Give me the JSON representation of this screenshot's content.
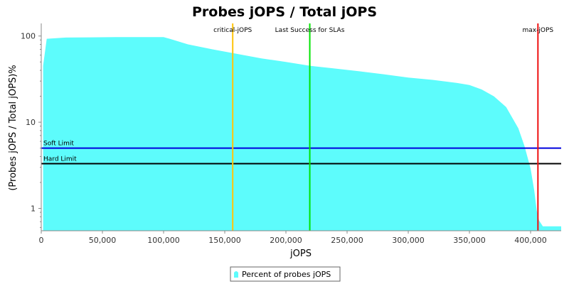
{
  "chart_data": {
    "type": "area",
    "title": "Probes jOPS / Total jOPS",
    "xlabel": "jOPS",
    "ylabel": "(Probes jOPS / Total jOPS)%",
    "y_scale": "log",
    "xlim": [
      0,
      425000
    ],
    "ylim": [
      0.55,
      140
    ],
    "x_ticks": [
      {
        "value": 0,
        "label": "0"
      },
      {
        "value": 50000,
        "label": "50,000"
      },
      {
        "value": 100000,
        "label": "100,000"
      },
      {
        "value": 150000,
        "label": "150,000"
      },
      {
        "value": 200000,
        "label": "200,000"
      },
      {
        "value": 250000,
        "label": "250,000"
      },
      {
        "value": 300000,
        "label": "300,000"
      },
      {
        "value": 350000,
        "label": "350,000"
      },
      {
        "value": 400000,
        "label": "400,000"
      }
    ],
    "y_ticks": [
      {
        "value": 1,
        "label": "1"
      },
      {
        "value": 10,
        "label": "10"
      },
      {
        "value": 100,
        "label": "100"
      }
    ],
    "grid": false,
    "legend_position": "bottom-center",
    "series": [
      {
        "name": "Percent of probes jOPS",
        "color": "#5dfcfc",
        "points": [
          [
            1500,
            45
          ],
          [
            4500,
            93
          ],
          [
            10000,
            94
          ],
          [
            20000,
            96
          ],
          [
            40000,
            96.5
          ],
          [
            60000,
            97
          ],
          [
            80000,
            97
          ],
          [
            100000,
            97
          ],
          [
            105000,
            93
          ],
          [
            120000,
            80
          ],
          [
            140000,
            70
          ],
          [
            160000,
            62
          ],
          [
            180000,
            55
          ],
          [
            200000,
            50
          ],
          [
            220000,
            45
          ],
          [
            240000,
            42
          ],
          [
            260000,
            39
          ],
          [
            280000,
            36
          ],
          [
            300000,
            33
          ],
          [
            320000,
            31
          ],
          [
            340000,
            28.5
          ],
          [
            350000,
            27
          ],
          [
            360000,
            24
          ],
          [
            370000,
            20
          ],
          [
            380000,
            15
          ],
          [
            390000,
            8.5
          ],
          [
            395000,
            5.3
          ],
          [
            400000,
            2.9
          ],
          [
            403000,
            1.6
          ],
          [
            405000,
            0.95
          ],
          [
            407000,
            0.72
          ],
          [
            410000,
            0.62
          ],
          [
            425000,
            0.62
          ]
        ]
      }
    ],
    "vertical_markers": [
      {
        "label": "critical-jOPS",
        "x": 156500,
        "color": "#ffc40a"
      },
      {
        "label": "Last Success for SLAs",
        "x": 219500,
        "color": "#00e400"
      },
      {
        "label": "max-jOPS",
        "x": 406000,
        "color": "#ee1111"
      }
    ],
    "horizontal_markers": [
      {
        "label": "Soft Limit",
        "y": 5,
        "color": "#0000dd"
      },
      {
        "label": "Hard Limit",
        "y": 3.3,
        "color": "#000000"
      }
    ]
  }
}
